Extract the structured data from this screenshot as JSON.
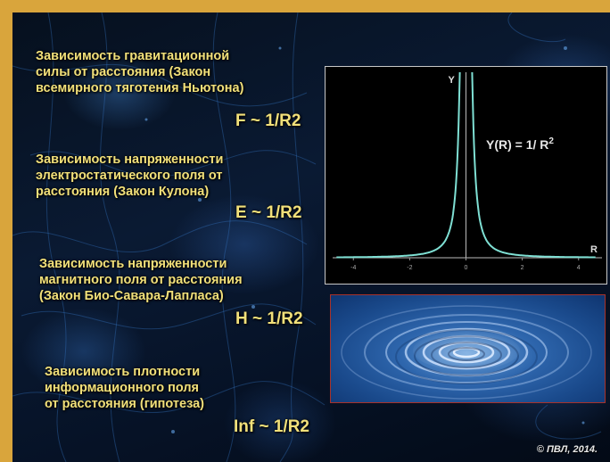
{
  "blocks": [
    {
      "lines": [
        "Зависимость гравитационной",
        "силы от расстояния (Закон",
        "всемирного тяготения Ньютона)"
      ],
      "formula": "F ~ 1/R2"
    },
    {
      "lines": [
        "Зависимость напряженности",
        "электростатического поля от",
        "расстояния (Закон Кулона)"
      ],
      "formula": "E ~ 1/R2"
    },
    {
      "lines": [
        "Зависимость напряженности",
        "магнитного поля от расстояния",
        "(Закон Био-Савара-Лапласа)"
      ],
      "formula": "H ~ 1/R2"
    },
    {
      "lines": [
        "Зависимость плотности",
        "информационного поля",
        "от расстояния (гипотеза)"
      ],
      "formula": "Inf ~ 1/R2"
    }
  ],
  "chart_data": {
    "type": "line",
    "function": "1/x^2",
    "ylabel": "Y",
    "xlabel": "R",
    "equation": "Y(R) = 1/ R",
    "equation_superscript": "2",
    "xlim": [
      -4.8,
      4.8
    ],
    "ylim": [
      0,
      1
    ],
    "x_ticks": [
      "-4",
      "-2",
      "0",
      "2",
      "4"
    ],
    "series_color": "#7fe0d4",
    "grid": false
  },
  "copyright": "© ПВЛ, 2014."
}
